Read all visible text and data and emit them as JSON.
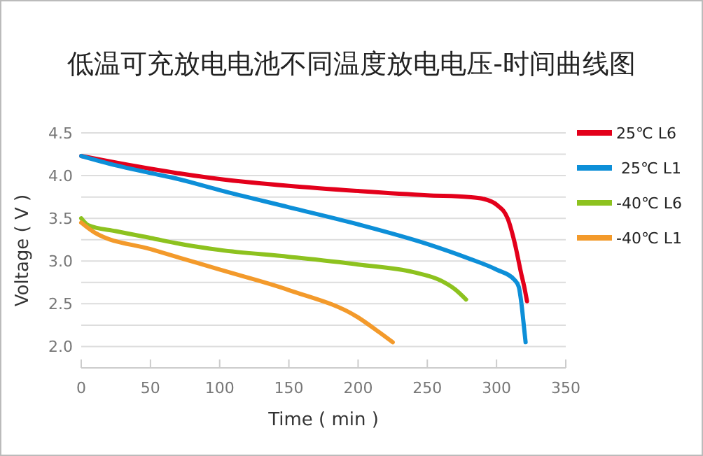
{
  "chart_data": {
    "type": "line",
    "title": "低温可充放电电池不同温度放电电压-时间曲线图",
    "xlabel": "Time ( min )",
    "ylabel": "Voltage ( V )",
    "xlim": [
      0,
      350
    ],
    "xticks": [
      0,
      50,
      100,
      150,
      200,
      250,
      300,
      350
    ],
    "ylim": [
      1.75,
      4.5
    ],
    "yticks": [
      {
        "value": 1.75,
        "label": null
      },
      {
        "value": 2,
        "label": "2.0"
      },
      {
        "value": 2.25,
        "label": null
      },
      2.5,
      {
        "value": 2.75,
        "label": null
      },
      {
        "value": 3,
        "label": "3.0"
      },
      {
        "value": 3.25,
        "label": null
      },
      3.5,
      {
        "value": 3.75,
        "label": null
      },
      {
        "value": 4,
        "label": "4.0"
      },
      {
        "value": 4.25,
        "label": null
      },
      4.5
    ],
    "grid": "y",
    "legend": "right",
    "marker": "none",
    "line_style": "solid",
    "series": [
      {
        "name": "25℃ L6",
        "color": "#e3001b",
        "x": [
          0,
          50,
          100,
          150,
          200,
          250,
          280,
          290,
          300,
          308,
          313,
          318,
          320,
          322
        ],
        "values": [
          4.23,
          4.08,
          3.96,
          3.88,
          3.82,
          3.77,
          3.75,
          3.73,
          3.66,
          3.5,
          3.22,
          2.84,
          2.7,
          2.53
        ]
      },
      {
        "name": " 25℃ L1",
        "color": "#0d8fd8",
        "x": [
          0,
          25,
          50,
          70,
          100,
          150,
          200,
          250,
          280,
          300,
          313,
          316,
          318,
          320,
          321
        ],
        "values": [
          4.23,
          4.12,
          4.03,
          3.96,
          3.83,
          3.63,
          3.43,
          3.2,
          3.03,
          2.9,
          2.78,
          2.7,
          2.5,
          2.2,
          2.05
        ]
      },
      {
        "name": "-40℃ L6",
        "color": "#8dc21f",
        "x": [
          0,
          5,
          25,
          50,
          75,
          100,
          150,
          200,
          240,
          260,
          270,
          278
        ],
        "values": [
          3.5,
          3.42,
          3.35,
          3.27,
          3.19,
          3.13,
          3.05,
          2.96,
          2.87,
          2.77,
          2.67,
          2.55
        ]
      },
      {
        "name": "-40℃ L1",
        "color": "#f39a2b",
        "x": [
          0,
          10,
          50,
          100,
          150,
          200,
          215,
          225
        ],
        "values": [
          3.45,
          3.33,
          3.14,
          2.9,
          2.66,
          2.34,
          2.17,
          2.05
        ]
      }
    ]
  }
}
